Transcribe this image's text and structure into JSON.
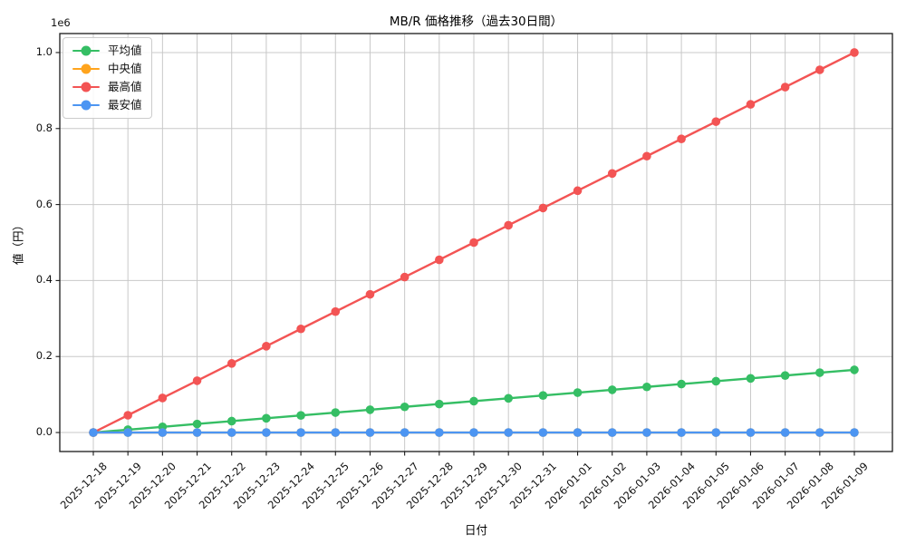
{
  "chart_data": {
    "type": "line",
    "title": "MB/R 価格推移（過去30日間）",
    "xlabel": "日付",
    "ylabel": "値（円）",
    "y_offset_label": "1e6",
    "x": [
      "2025-12-18",
      "2025-12-19",
      "2025-12-20",
      "2025-12-21",
      "2025-12-22",
      "2025-12-23",
      "2025-12-24",
      "2025-12-25",
      "2025-12-26",
      "2025-12-27",
      "2025-12-28",
      "2025-12-29",
      "2025-12-30",
      "2025-12-31",
      "2026-01-01",
      "2026-01-02",
      "2026-01-03",
      "2026-01-04",
      "2026-01-05",
      "2026-01-06",
      "2026-01-07",
      "2026-01-08",
      "2026-01-09"
    ],
    "series": [
      {
        "name": "平均値",
        "color": "#35BE64",
        "values": [
          0,
          7500,
          15000,
          22500,
          30000,
          37500,
          45000,
          52500,
          60000,
          67500,
          75000,
          82500,
          90000,
          97500,
          105000,
          112500,
          120000,
          127500,
          135000,
          142500,
          150000,
          157500,
          165000
        ]
      },
      {
        "name": "中央値",
        "color": "#FFA41D",
        "values": [
          0,
          0,
          0,
          0,
          0,
          0,
          0,
          0,
          0,
          0,
          0,
          0,
          0,
          0,
          0,
          0,
          0,
          0,
          0,
          0,
          0,
          0,
          0
        ]
      },
      {
        "name": "最高値",
        "color": "#F35454",
        "values": [
          0,
          45455,
          90909,
          136364,
          181818,
          227273,
          272727,
          318182,
          363636,
          409091,
          454545,
          500000,
          545455,
          590909,
          636364,
          681818,
          727273,
          772727,
          818182,
          863636,
          909091,
          954545,
          1000000
        ]
      },
      {
        "name": "最安値",
        "color": "#4C95F2",
        "values": [
          0,
          0,
          0,
          0,
          0,
          0,
          0,
          0,
          0,
          0,
          0,
          0,
          0,
          0,
          0,
          0,
          0,
          0,
          0,
          0,
          0,
          0,
          0
        ]
      }
    ],
    "yticks": {
      "values": [
        0,
        200000,
        400000,
        600000,
        800000,
        1000000
      ],
      "labels": [
        "0.0",
        "0.2",
        "0.4",
        "0.6",
        "0.8",
        "1.0"
      ]
    },
    "ylim": [
      -50000,
      1050000
    ],
    "grid": true,
    "legend_position": "upper left",
    "colors": {
      "grid": "#c8c8c8",
      "spine": "#1a1a1a",
      "tick": "#1a1a1a",
      "background": "#ffffff"
    }
  }
}
